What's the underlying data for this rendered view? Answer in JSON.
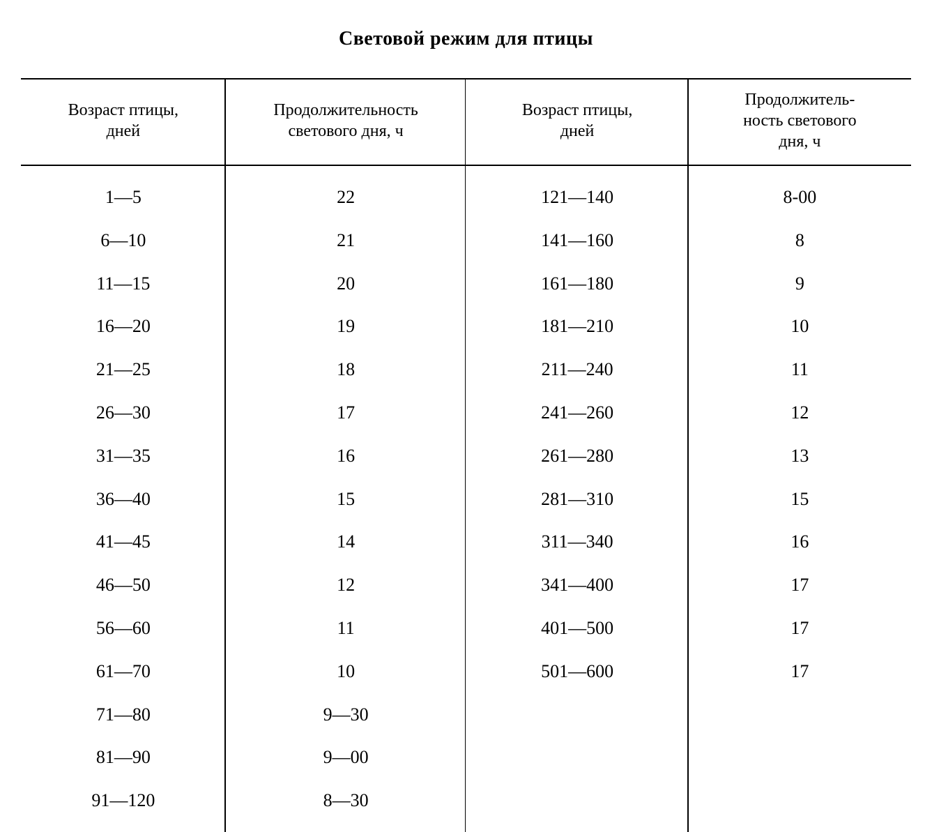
{
  "title": "Световой режим для птицы",
  "table": {
    "columns": [
      "Возраст птицы,\nдней",
      "Продолжительность\nсветового дня, ч",
      "Возраст птицы,\nдней",
      "Продолжитель-\nность светового\nдня, ч"
    ],
    "rows": [
      [
        "1—5",
        "22",
        "121—140",
        "8-00"
      ],
      [
        "6—10",
        "21",
        "141—160",
        "8"
      ],
      [
        "11—15",
        "20",
        "161—180",
        "9"
      ],
      [
        "16—20",
        "19",
        "181—210",
        "10"
      ],
      [
        "21—25",
        "18",
        "211—240",
        "11"
      ],
      [
        "26—30",
        "17",
        "241—260",
        "12"
      ],
      [
        "31—35",
        "16",
        "261—280",
        "13"
      ],
      [
        "36—40",
        "15",
        "281—310",
        "15"
      ],
      [
        "41—45",
        "14",
        "311—340",
        "16"
      ],
      [
        "46—50",
        "12",
        "341—400",
        "17"
      ],
      [
        "56—60",
        "11",
        "401—500",
        "17"
      ],
      [
        "61—70",
        "10",
        "501—600",
        "17"
      ],
      [
        "71—80",
        "9—30",
        "",
        ""
      ],
      [
        "81—90",
        "9—00",
        "",
        ""
      ],
      [
        "91—120",
        "8—30",
        "",
        ""
      ]
    ],
    "colors": {
      "background": "#ffffff",
      "text": "#000000",
      "border": "#000000"
    },
    "font": {
      "family": "Times New Roman",
      "title_size_pt": 21,
      "header_size_pt": 18,
      "cell_size_pt": 20
    },
    "column_widths_pct": [
      23,
      27,
      25,
      25
    ],
    "type": "table"
  }
}
